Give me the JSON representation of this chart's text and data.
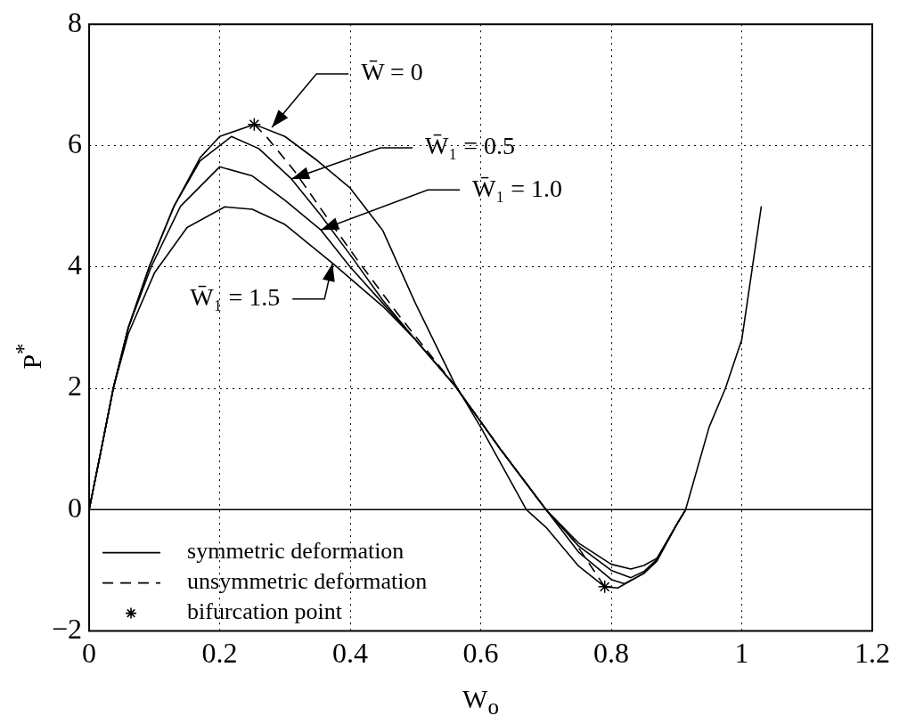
{
  "chart_data": {
    "type": "line",
    "xlabel": "W$_{o}$",
    "ylabel": "P$^{*}$",
    "xlim": [
      0,
      1.2
    ],
    "xticks": [
      0,
      0.2,
      0.4,
      0.6,
      0.8,
      1,
      1.2
    ],
    "ylim": [
      -2,
      8
    ],
    "yticks": [
      -2,
      0,
      2,
      4,
      6,
      8
    ],
    "grid": true,
    "legend": "bottom left",
    "marker": "none",
    "line_style": "solid",
    "ref_lines": [
      {
        "axis": "y",
        "value": 0,
        "color": "#000000"
      }
    ],
    "series": [
      {
        "name": "symmetric deformation",
        "color": "#000000",
        "x": [
          0,
          0.02,
          0.037,
          0.06,
          0.092,
          0.13,
          0.17,
          0.2,
          0.253,
          0.3,
          0.35,
          0.4,
          0.45,
          0.5,
          0.56,
          0.6,
          0.67,
          0.7,
          0.75,
          0.79,
          0.81,
          0.85,
          0.87,
          0.9,
          0.914,
          0.95,
          0.975,
          1.0,
          1.03
        ],
        "values": [
          0,
          1.07,
          2,
          3,
          4,
          5,
          5.8,
          6.15,
          6.35,
          6.15,
          5.75,
          5.3,
          4.6,
          3.4,
          2.08,
          1.36,
          0,
          -0.29,
          -0.93,
          -1.27,
          -1.29,
          -1.05,
          -0.85,
          -0.25,
          0,
          1.36,
          2,
          2.8,
          5
        ]
      },
      {
        "color": "#000000",
        "x": [
          0,
          0.02,
          0.037,
          0.06,
          0.092,
          0.13,
          0.17,
          0.218,
          0.26,
          0.31,
          0.355,
          0.4,
          0.45,
          0.5,
          0.56,
          0.63,
          0.7,
          0.75,
          0.8,
          0.82,
          0.85,
          0.87,
          0.9,
          0.914
        ],
        "values": [
          0,
          1.07,
          2,
          3,
          4,
          5,
          5.75,
          6.15,
          5.95,
          5.45,
          4.85,
          4.2,
          3.45,
          2.8,
          2.05,
          1,
          0,
          -0.7,
          -1.15,
          -1.22,
          -1.05,
          -0.83,
          -0.25,
          0
        ]
      },
      {
        "color": "#000000",
        "x": [
          0,
          0.02,
          0.037,
          0.06,
          0.095,
          0.14,
          0.2,
          0.25,
          0.3,
          0.355,
          0.4,
          0.45,
          0.5,
          0.56,
          0.63,
          0.7,
          0.75,
          0.8,
          0.83,
          0.85,
          0.87,
          0.9,
          0.914
        ],
        "values": [
          0,
          1.07,
          2,
          3,
          4,
          5,
          5.65,
          5.5,
          5.1,
          4.61,
          4,
          3.4,
          2.8,
          2.05,
          1,
          0,
          -0.6,
          -1,
          -1.12,
          -1.02,
          -0.82,
          -0.25,
          0
        ]
      },
      {
        "color": "#000000",
        "x": [
          0,
          0.02,
          0.037,
          0.06,
          0.1,
          0.15,
          0.208,
          0.25,
          0.3,
          0.373,
          0.45,
          0.5,
          0.56,
          0.63,
          0.7,
          0.75,
          0.8,
          0.83,
          0.85,
          0.87,
          0.9,
          0.914
        ],
        "values": [
          0,
          1.07,
          2,
          2.9,
          3.9,
          4.65,
          4.99,
          4.95,
          4.7,
          4.06,
          3.35,
          2.8,
          2.05,
          1,
          0,
          -0.55,
          -0.9,
          -0.98,
          -0.92,
          -0.8,
          -0.25,
          0
        ]
      },
      {
        "name": "unsymmetric deformation",
        "color": "#000000",
        "line_style": "dashed",
        "x": [
          0.253,
          0.273,
          0.314,
          0.355,
          0.41,
          0.474,
          0.56,
          0.63,
          0.7,
          0.742,
          0.79
        ],
        "values": [
          6.35,
          6.13,
          5.59,
          4.96,
          4.13,
          3.21,
          2.05,
          1,
          0,
          -0.5,
          -1.27
        ]
      },
      {
        "name": "bifurcation point",
        "type": "scatter",
        "marker": "cross",
        "color": "#000000",
        "x": [
          0.253,
          0.79
        ],
        "values": [
          6.35,
          -1.27
        ]
      }
    ],
    "annotations": [
      {
        "text": "W̄ = 0",
        "x": 0.28,
        "y": 6.3
      },
      {
        "text": "W̄₁ = 0.5",
        "x": 0.31,
        "y": 5.45
      },
      {
        "text": "W̄₁ = 1.0",
        "x": 0.355,
        "y": 4.61
      },
      {
        "text": "W̄₁ = 1.5",
        "x": 0.373,
        "y": 4.06
      }
    ]
  }
}
